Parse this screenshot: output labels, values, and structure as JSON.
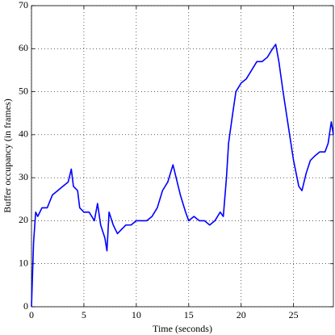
{
  "chart_data": {
    "type": "line",
    "xlabel": "Time (seconds)",
    "ylabel": "Buffer occupancy (in frames)",
    "xlim": [
      0,
      28.8
    ],
    "xticks": [
      0,
      5,
      10,
      15,
      20,
      25
    ],
    "ylim": [
      0,
      70
    ],
    "yticks": [
      0,
      10,
      20,
      30,
      40,
      50,
      60,
      70
    ],
    "grid": true,
    "series": [
      {
        "name": "Buffer occupancy",
        "color": "#0000ff",
        "x": [
          0,
          0.2,
          0.4,
          0.6,
          1,
          1.5,
          2,
          2.5,
          3,
          3.5,
          3.8,
          4,
          4.4,
          4.6,
          5,
          5.5,
          6,
          6.3,
          6.6,
          7,
          7.2,
          7.4,
          7.8,
          8.2,
          8.6,
          9,
          9.5,
          10,
          11,
          11.5,
          12,
          12.5,
          13,
          13.5,
          13.8,
          14.2,
          14.7,
          15,
          15.5,
          16,
          16.5,
          17,
          17.5,
          18,
          18.3,
          18.6,
          18.8,
          19.2,
          19.5,
          20,
          20.5,
          21,
          21.5,
          22,
          22.5,
          23,
          23.3,
          23.6,
          24,
          24.5,
          25,
          25.5,
          25.8,
          26.2,
          26.6,
          27,
          27.5,
          28,
          28.3,
          28.6,
          28.8
        ],
        "values": [
          0,
          15,
          22,
          21,
          23,
          23,
          26,
          27,
          28,
          29,
          32,
          28,
          27,
          23,
          22,
          22,
          20,
          24,
          19,
          16,
          13,
          22,
          19,
          17,
          18,
          19,
          19,
          20,
          20,
          21,
          23,
          27,
          29,
          33,
          30,
          26,
          22,
          20,
          21,
          20,
          20,
          19,
          20,
          22,
          21,
          30,
          38,
          45,
          50,
          52,
          53,
          55,
          57,
          57,
          58,
          60,
          61,
          57,
          50,
          42,
          34,
          28,
          27,
          31,
          34,
          35,
          36,
          36,
          38,
          43,
          40
        ]
      }
    ]
  }
}
